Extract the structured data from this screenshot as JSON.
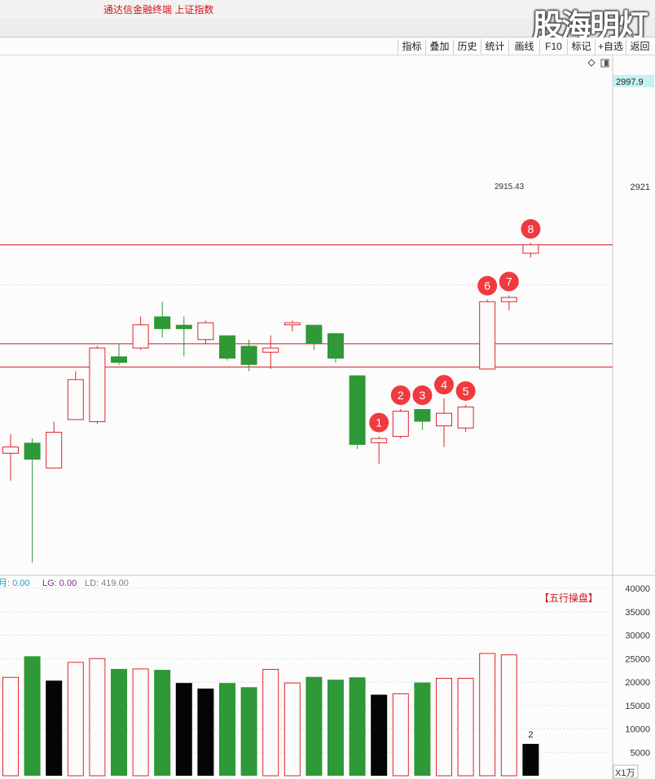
{
  "app": {
    "title": "通达信金融终端  上证指数",
    "watermark": "股海明灯"
  },
  "toolbar": {
    "buttons": [
      {
        "id": "indicator",
        "label": "指标"
      },
      {
        "id": "overlay",
        "label": "叠加"
      },
      {
        "id": "history",
        "label": "历史"
      },
      {
        "id": "stats",
        "label": "统计"
      },
      {
        "id": "draw",
        "label": "画线"
      },
      {
        "id": "f10",
        "label": "F10"
      },
      {
        "id": "mark",
        "label": "标记"
      },
      {
        "id": "add-watch",
        "label": "+自选"
      },
      {
        "id": "back",
        "label": "返回"
      }
    ]
  },
  "chart_data": [
    {
      "type": "candlestick",
      "name": "price",
      "y_ticks": [
        "2921"
      ],
      "current_price_label": "2997.9",
      "annotation_value": "2915.43",
      "ylim": [
        2790,
        3030
      ],
      "horizontal_lines": [
        2940,
        2882,
        2893
      ],
      "candles": [
        {
          "o": 2841,
          "h": 2850,
          "l": 2828,
          "c": 2844,
          "color": "red"
        },
        {
          "o": 2846,
          "h": 2848,
          "l": 2789,
          "c": 2838,
          "color": "green"
        },
        {
          "o": 2834,
          "h": 2856,
          "l": 2834,
          "c": 2851,
          "color": "red"
        },
        {
          "o": 2857,
          "h": 2880,
          "l": 2857,
          "c": 2876,
          "color": "red"
        },
        {
          "o": 2856,
          "h": 2892,
          "l": 2855,
          "c": 2891,
          "color": "red"
        },
        {
          "o": 2887,
          "h": 2893,
          "l": 2883,
          "c": 2884,
          "color": "green"
        },
        {
          "o": 2891,
          "h": 2906,
          "l": 2890,
          "c": 2902,
          "color": "red"
        },
        {
          "o": 2906,
          "h": 2913,
          "l": 2896,
          "c": 2900,
          "color": "green"
        },
        {
          "o": 2902,
          "h": 2906,
          "l": 2887,
          "c": 2900,
          "color": "green"
        },
        {
          "o": 2895,
          "h": 2904,
          "l": 2893,
          "c": 2903,
          "color": "red"
        },
        {
          "o": 2897,
          "h": 2897,
          "l": 2885,
          "c": 2886,
          "color": "green"
        },
        {
          "o": 2892,
          "h": 2895,
          "l": 2880,
          "c": 2883,
          "color": "green"
        },
        {
          "o": 2889,
          "h": 2897,
          "l": 2881,
          "c": 2891,
          "color": "red"
        },
        {
          "o": 2902,
          "h": 2904,
          "l": 2899,
          "c": 2903,
          "color": "red"
        },
        {
          "o": 2902,
          "h": 2902,
          "l": 2890,
          "c": 2893,
          "color": "green"
        },
        {
          "o": 2898,
          "h": 2898,
          "l": 2884,
          "c": 2886,
          "color": "green"
        },
        {
          "o": 2878,
          "h": 2878,
          "l": 2843,
          "c": 2845,
          "color": "green"
        },
        {
          "o": 2846,
          "h": 2849,
          "l": 2836,
          "c": 2848,
          "color": "red",
          "marker": "1"
        },
        {
          "o": 2849,
          "h": 2862,
          "l": 2848,
          "c": 2861,
          "color": "red",
          "marker": "2"
        },
        {
          "o": 2862,
          "h": 2862,
          "l": 2852,
          "c": 2856,
          "color": "green",
          "marker": "3"
        },
        {
          "o": 2854,
          "h": 2867,
          "l": 2844,
          "c": 2860,
          "color": "red",
          "marker": "4"
        },
        {
          "o": 2853,
          "h": 2864,
          "l": 2851,
          "c": 2863,
          "color": "red",
          "marker": "5"
        },
        {
          "o": 2881,
          "h": 2914,
          "l": 2881,
          "c": 2913,
          "color": "red",
          "marker": "6"
        },
        {
          "o": 2913,
          "h": 2916,
          "l": 2909,
          "c": 2915,
          "color": "red",
          "marker": "7"
        },
        {
          "o": 2936,
          "h": 2941,
          "l": 2934,
          "c": 2940,
          "color": "red",
          "marker": "8"
        }
      ]
    },
    {
      "type": "bar",
      "name": "volume",
      "legend": [
        {
          "label": "月: 0.00",
          "color": "#1aa3c8"
        },
        {
          "label": "LG: 0.00",
          "color": "#7b2c8c"
        },
        {
          "label": "LD: 419.00",
          "color": "#808080"
        }
      ],
      "overlay_label": "【五行操盘】",
      "y_ticks": [
        5000,
        10000,
        15000,
        20000,
        25000,
        30000,
        35000,
        40000
      ],
      "ylim": [
        0,
        40000
      ],
      "unit_label": "X1万",
      "last_label": "2",
      "bars": [
        {
          "v": 21000,
          "color": "red"
        },
        {
          "v": 25500,
          "color": "green"
        },
        {
          "v": 20300,
          "color": "black"
        },
        {
          "v": 24200,
          "color": "red"
        },
        {
          "v": 25000,
          "color": "red"
        },
        {
          "v": 22800,
          "color": "green"
        },
        {
          "v": 22800,
          "color": "red"
        },
        {
          "v": 22600,
          "color": "green"
        },
        {
          "v": 19800,
          "color": "black"
        },
        {
          "v": 18600,
          "color": "black"
        },
        {
          "v": 19800,
          "color": "green"
        },
        {
          "v": 18900,
          "color": "green"
        },
        {
          "v": 22700,
          "color": "red"
        },
        {
          "v": 19800,
          "color": "red"
        },
        {
          "v": 21100,
          "color": "green"
        },
        {
          "v": 20500,
          "color": "green"
        },
        {
          "v": 21000,
          "color": "green"
        },
        {
          "v": 17300,
          "color": "black"
        },
        {
          "v": 17500,
          "color": "red"
        },
        {
          "v": 19900,
          "color": "green"
        },
        {
          "v": 20800,
          "color": "red"
        },
        {
          "v": 20800,
          "color": "red"
        },
        {
          "v": 26100,
          "color": "red"
        },
        {
          "v": 25800,
          "color": "red"
        },
        {
          "v": 6800,
          "color": "black"
        }
      ]
    }
  ],
  "colors": {
    "up": "#e0242b",
    "down": "#2e9936",
    "black": "#050505",
    "marker": "#f03a3f",
    "line": "#c91e25",
    "axis_label": "#333333",
    "price_badge_bg": "#c4f1f1"
  }
}
